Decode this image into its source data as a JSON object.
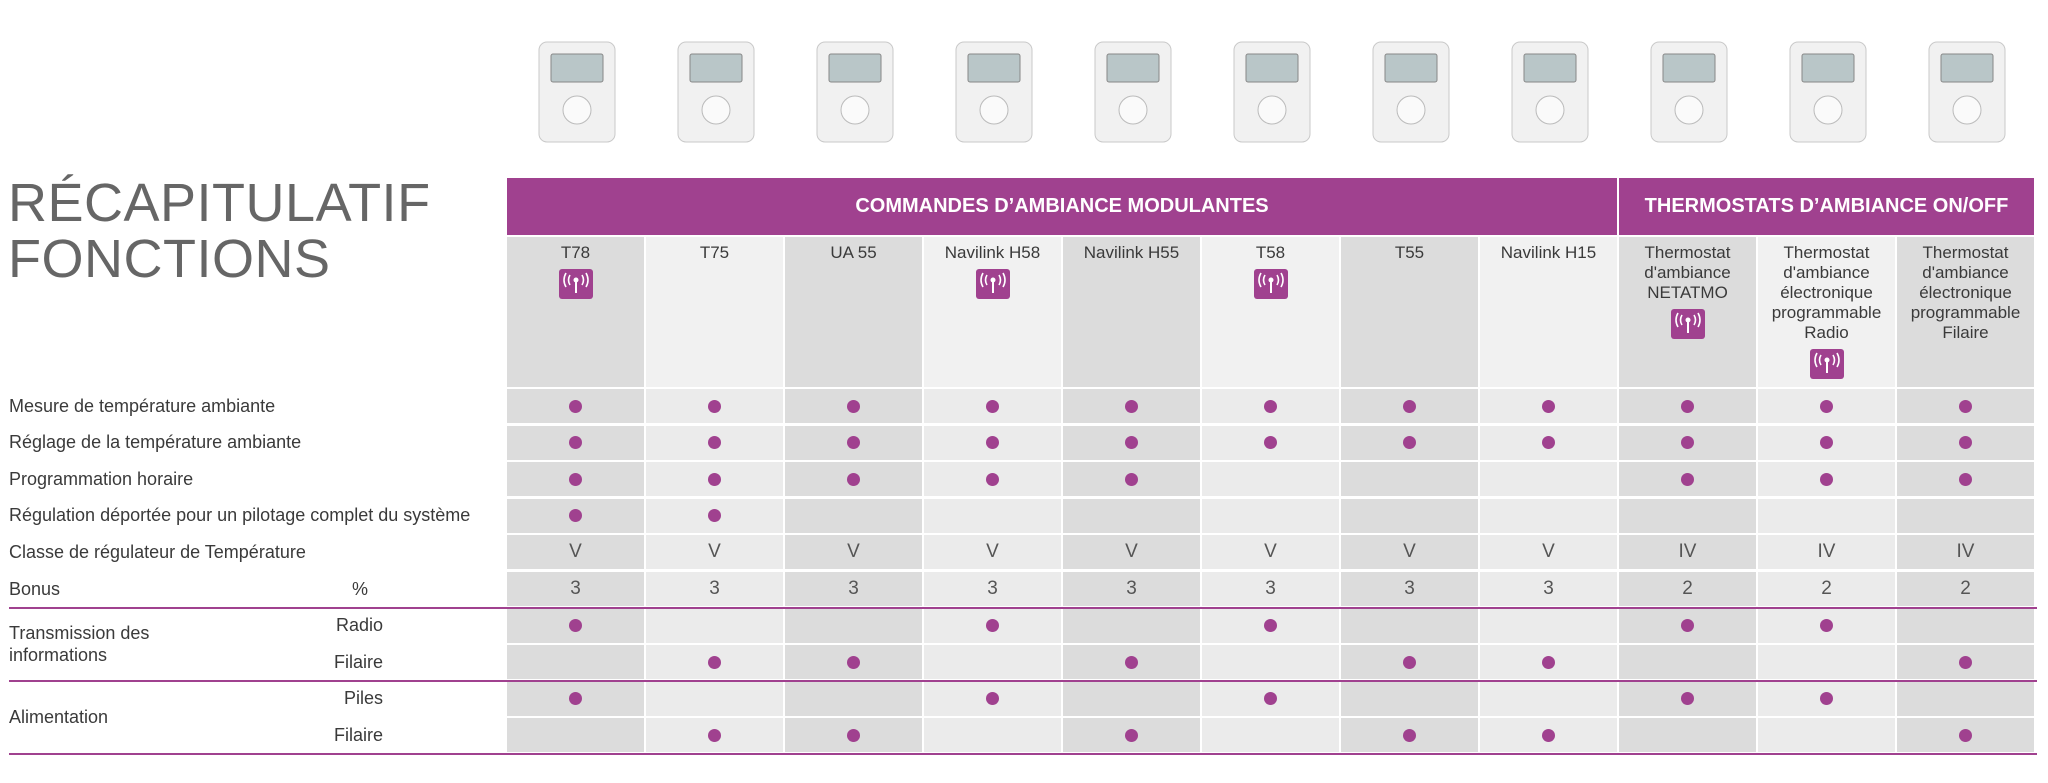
{
  "title": [
    "RÉCAPITULATIF",
    "FONCTIONS"
  ],
  "header": {
    "groups": [
      {
        "label": "COMMANDES D’AMBIANCE MODULANTES",
        "columns": [
          {
            "name": "T78",
            "radio": true
          },
          {
            "name": "T75",
            "radio": false
          },
          {
            "name": "UA 55",
            "radio": false
          },
          {
            "name": "Navilink H58",
            "radio": true
          },
          {
            "name": "Navilink H55",
            "radio": false
          },
          {
            "name": "T58",
            "radio": true
          },
          {
            "name": "T55",
            "radio": false
          },
          {
            "name": "Navilink H15",
            "radio": false
          }
        ]
      },
      {
        "label": "THERMOSTATS D’AMBIANCE ON/OFF",
        "columns": [
          {
            "name": "Thermostat d'ambiance NETATMO",
            "radio": true
          },
          {
            "name": "Thermostat d'ambiance électronique programmable Radio",
            "radio": true
          },
          {
            "name": "Thermostat d'ambiance électronique programmable Filaire",
            "radio": false
          }
        ]
      }
    ]
  },
  "rows": [
    {
      "label": "Mesure de température ambiante",
      "cells": [
        true,
        true,
        true,
        true,
        true,
        true,
        true,
        true,
        true,
        true,
        true
      ]
    },
    {
      "label": "Réglage de la température ambiante",
      "cells": [
        true,
        true,
        true,
        true,
        true,
        true,
        true,
        true,
        true,
        true,
        true
      ]
    },
    {
      "label": "Programmation horaire",
      "cells": [
        true,
        true,
        true,
        true,
        true,
        null,
        null,
        null,
        true,
        true,
        true
      ]
    },
    {
      "label": "Régulation déportée pour un pilotage complet du système",
      "cells": [
        true,
        true,
        null,
        null,
        null,
        null,
        null,
        null,
        null,
        null,
        null
      ]
    },
    {
      "label": "Classe de régulateur de Température",
      "cells": [
        "V",
        "V",
        "V",
        "V",
        "V",
        "V",
        "V",
        "V",
        "IV",
        "IV",
        "IV"
      ]
    },
    {
      "label": "Bonus",
      "sub": "%",
      "cells": [
        3,
        3,
        3,
        3,
        3,
        3,
        3,
        3,
        2,
        2,
        2
      ]
    }
  ],
  "row_groups": [
    {
      "label": "Transmission des informations",
      "rows": [
        {
          "sub": "Radio",
          "cells": [
            true,
            null,
            null,
            true,
            null,
            true,
            null,
            null,
            true,
            true,
            null
          ]
        },
        {
          "sub": "Filaire",
          "cells": [
            null,
            true,
            true,
            null,
            true,
            null,
            true,
            true,
            null,
            null,
            true
          ]
        }
      ]
    },
    {
      "label": "Alimentation",
      "rows": [
        {
          "sub": "Piles",
          "cells": [
            true,
            null,
            null,
            true,
            null,
            true,
            null,
            null,
            true,
            true,
            null
          ]
        },
        {
          "sub": "Filaire",
          "cells": [
            null,
            true,
            true,
            null,
            true,
            null,
            true,
            true,
            null,
            null,
            true
          ]
        }
      ]
    }
  ]
}
